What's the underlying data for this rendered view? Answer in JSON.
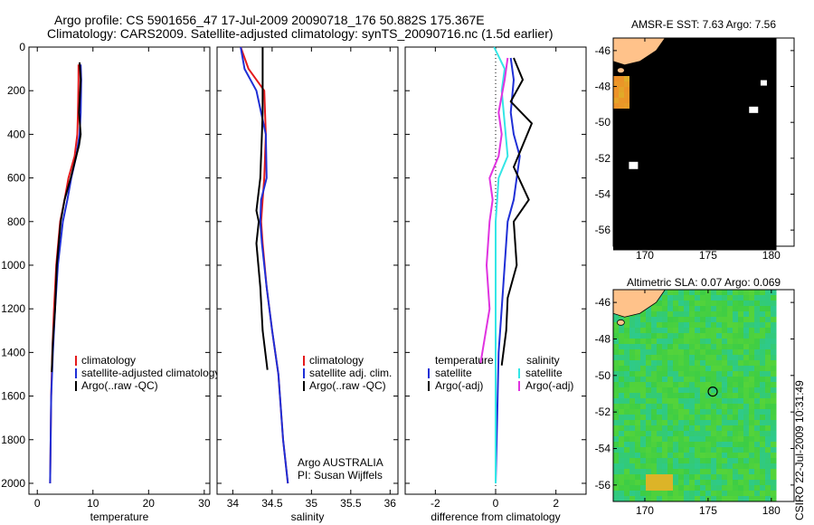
{
  "header": {
    "line1": "Argo profile: CS 5901656_47 17-Jul-2009 20090718_176 50.882S 175.367E",
    "line2": "Climatology: CARS2009. Satellite-adjusted climatology: synTS_20090716.nc (1.5d earlier)"
  },
  "side_stamp": "CSIRO 22-Jul-2009 10:31:49",
  "colors": {
    "climatology": "#e41a1c",
    "satellite": "#1f2fd6",
    "argo": "#000000",
    "sal_satellite": "#33e6e6",
    "sal_argo": "#e033e0",
    "land": "#ffc28a"
  },
  "chart_data": [
    {
      "type": "line",
      "id": "temperature",
      "xlabel": "temperature",
      "ylabel": "",
      "xlim": [
        -1.5,
        31
      ],
      "ylim": [
        2050,
        0
      ],
      "xticks": [
        0,
        10,
        20,
        30
      ],
      "yticks": [
        0,
        200,
        400,
        600,
        800,
        1000,
        1200,
        1400,
        1600,
        1800,
        2000
      ],
      "legend": [
        "climatology",
        "satellite-adjusted climatology",
        "Argo(..raw -QC)"
      ],
      "series": [
        {
          "name": "climatology",
          "key": "climatology",
          "x": [
            7.4,
            7.4,
            7.3,
            7.2,
            6.7,
            5.6,
            4.9,
            4.1,
            3.4,
            3.0,
            2.7,
            2.5,
            2.4,
            2.3
          ],
          "y": [
            80,
            150,
            300,
            400,
            500,
            600,
            700,
            800,
            1000,
            1200,
            1400,
            1600,
            1800,
            2000
          ]
        },
        {
          "name": "satellite-adjusted climatology",
          "key": "satellite",
          "x": [
            7.8,
            7.9,
            7.8,
            7.6,
            7.0,
            6.1,
            5.4,
            4.6,
            3.7,
            3.2,
            2.8,
            2.5,
            2.4,
            2.3
          ],
          "y": [
            80,
            150,
            300,
            400,
            500,
            600,
            700,
            800,
            1000,
            1200,
            1400,
            1600,
            1800,
            2000
          ]
        },
        {
          "name": "Argo(..raw -QC)",
          "key": "argo",
          "x": [
            7.6,
            7.8,
            7.5,
            7.8,
            7.5,
            6.0,
            4.9,
            4.2,
            3.5,
            3.2,
            2.8,
            2.6
          ],
          "y": [
            70,
            150,
            300,
            400,
            450,
            600,
            700,
            800,
            1000,
            1200,
            1350,
            1490
          ]
        }
      ]
    },
    {
      "type": "line",
      "id": "salinity",
      "xlabel": "salinity",
      "ylabel": "",
      "xlim": [
        33.8,
        36.1
      ],
      "ylim": [
        2050,
        0
      ],
      "xticks": [
        34,
        34.5,
        35,
        35.5,
        36
      ],
      "yticks": [
        0,
        200,
        400,
        600,
        800,
        1000,
        1200,
        1400,
        1600,
        1800,
        2000
      ],
      "legend": [
        "climatology",
        "satellite adj. clim.",
        "Argo(..raw -QC)"
      ],
      "annotation": [
        "Argo AUSTRALIA",
        "PI: Susan Wijffels"
      ],
      "series": [
        {
          "name": "climatology",
          "key": "climatology",
          "x": [
            34.1,
            34.2,
            34.4,
            34.42,
            34.4,
            34.38,
            34.36,
            34.38,
            34.43,
            34.5,
            34.58,
            34.64,
            34.7
          ],
          "y": [
            0,
            100,
            200,
            400,
            600,
            700,
            800,
            900,
            1100,
            1300,
            1500,
            1800,
            2000
          ]
        },
        {
          "name": "satellite adj. clim.",
          "key": "satellite",
          "x": [
            34.1,
            34.15,
            34.3,
            34.42,
            34.43,
            34.36,
            34.35,
            34.37,
            34.43,
            34.5,
            34.58,
            34.64,
            34.7
          ],
          "y": [
            0,
            100,
            200,
            400,
            600,
            700,
            800,
            900,
            1100,
            1300,
            1500,
            1800,
            2000
          ]
        },
        {
          "name": "Argo(..raw -QC)",
          "key": "argo",
          "x": [
            34.38,
            34.38,
            34.38,
            34.37,
            34.36,
            34.35,
            34.3,
            34.33,
            34.3,
            34.35,
            34.38,
            34.44
          ],
          "y": [
            0,
            200,
            300,
            400,
            500,
            600,
            750,
            800,
            900,
            1100,
            1300,
            1480
          ]
        }
      ]
    },
    {
      "type": "line",
      "id": "difference",
      "xlabel": "difference from climatology",
      "ylabel": "",
      "xlim": [
        -3,
        3
      ],
      "ylim": [
        2050,
        0
      ],
      "xticks": [
        -2,
        0,
        2
      ],
      "yticks": [
        0,
        200,
        400,
        600,
        800,
        1000,
        1200,
        1400,
        1600,
        1800,
        2000
      ],
      "legend_groups": [
        "temperature",
        "salinity"
      ],
      "legend": [
        "satellite",
        "Argo(-adj)",
        "satellite",
        "Argo(-adj)"
      ],
      "series": [
        {
          "name": "satellite",
          "group": "temperature",
          "key": "satellite",
          "x": [
            0.5,
            0.6,
            0.5,
            0.6,
            0.8,
            0.7,
            0.6,
            0.4,
            0.3,
            0.2,
            0.1,
            0.05,
            0
          ],
          "y": [
            50,
            150,
            300,
            400,
            500,
            600,
            700,
            800,
            1000,
            1200,
            1400,
            1700,
            2000
          ]
        },
        {
          "name": "Argo(-adj)",
          "group": "temperature",
          "key": "argo",
          "x": [
            0.6,
            0.9,
            0.5,
            1.2,
            0.9,
            0.6,
            1.1,
            0.6,
            0.7,
            0.4,
            0.35,
            0.2
          ],
          "y": [
            50,
            150,
            250,
            350,
            450,
            550,
            700,
            800,
            1000,
            1150,
            1300,
            1460
          ]
        },
        {
          "name": "satellite",
          "group": "salinity",
          "key": "sal_satellite",
          "x": [
            -0.05,
            0.3,
            0.2,
            0.3,
            0.4,
            0.1,
            0.05,
            0,
            0,
            0,
            0,
            0
          ],
          "y": [
            0,
            100,
            200,
            350,
            500,
            600,
            700,
            800,
            1000,
            1300,
            1600,
            2000
          ]
        },
        {
          "name": "Argo(-adj)",
          "group": "salinity",
          "key": "sal_argo",
          "x": [
            0.4,
            0.3,
            0.1,
            0.2,
            0.1,
            -0.2,
            -0.1,
            -0.2,
            -0.3,
            -0.2,
            -0.5
          ],
          "y": [
            50,
            150,
            300,
            400,
            500,
            600,
            700,
            800,
            1000,
            1200,
            1450
          ]
        }
      ]
    },
    {
      "type": "heatmap",
      "id": "sst_map",
      "title": "AMSR-E SST: 7.63 Argo: 7.56",
      "xlim": [
        167.5,
        181.8
      ],
      "ylim": [
        -56.9,
        -45.3
      ],
      "xticks": [
        170,
        175,
        180
      ],
      "yticks": [
        -46,
        -48,
        -50,
        -52,
        -54,
        -56
      ],
      "marker": {
        "lon": 175.367,
        "lat": -50.882
      }
    },
    {
      "type": "heatmap",
      "id": "sla_map",
      "title": "Altimetric SLA: 0.07 Argo: 0.069",
      "xlim": [
        167.5,
        181.8
      ],
      "ylim": [
        -56.9,
        -45.3
      ],
      "xticks": [
        170,
        175,
        180
      ],
      "yticks": [
        -46,
        -48,
        -50,
        -52,
        -54,
        -56
      ],
      "marker": {
        "lon": 175.367,
        "lat": -50.882
      }
    }
  ]
}
